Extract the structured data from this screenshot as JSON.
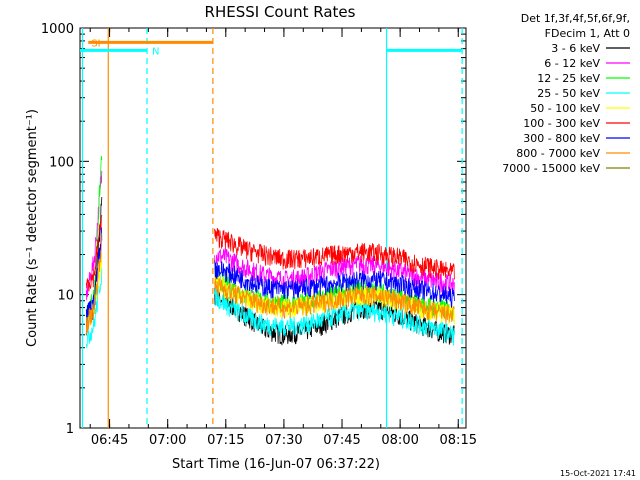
{
  "chart_data": {
    "type": "line",
    "title": "RHESSI Count Rates",
    "xlabel": "Start Time (16-Jun-07 06:37:22)",
    "ylabel": "Count Rate (s⁻¹ detector segment⁻¹)",
    "yscale": "log",
    "ylim": [
      1,
      1000
    ],
    "xlim": [
      "06:37:22",
      "08:17:00"
    ],
    "x_ticks": [
      "06:45",
      "07:00",
      "07:15",
      "07:30",
      "07:45",
      "08:00",
      "08:15"
    ],
    "y_ticks": [
      "1",
      "10",
      "100",
      "1000"
    ],
    "grid": false,
    "legend_position": "right",
    "legend_header": [
      "Det 1f,3f,4f,5f,6f,9f,",
      "FDecim 1, Att 0"
    ],
    "timestamp": "15-Oct-2021 17:41",
    "data_gap": [
      "06:46:30",
      "07:11:40"
    ],
    "series": [
      {
        "name": "3 - 6 keV",
        "color": "#000000",
        "x": [
          "06:39",
          "06:41",
          "06:43",
          "07:12",
          "07:15",
          "07:20",
          "07:25",
          "07:30",
          "07:35",
          "07:40",
          "07:45",
          "07:50",
          "07:55",
          "08:00",
          "08:05",
          "08:10",
          "08:14"
        ],
        "values": [
          6,
          8,
          50,
          10,
          9,
          7,
          5.5,
          5,
          5.3,
          6,
          7,
          8,
          7.8,
          7,
          6,
          5.3,
          5
        ]
      },
      {
        "name": "6 - 12 keV",
        "color": "#ff00ff",
        "x": [
          "06:39",
          "06:41",
          "06:43",
          "07:12",
          "07:15",
          "07:20",
          "07:25",
          "07:30",
          "07:35",
          "07:40",
          "07:45",
          "07:50",
          "07:55",
          "08:00",
          "08:05",
          "08:10",
          "08:14"
        ],
        "values": [
          10,
          18,
          80,
          20,
          19,
          16,
          14,
          13,
          13.5,
          15,
          16.5,
          17,
          16.5,
          15,
          13.5,
          12.5,
          12
        ]
      },
      {
        "name": "12 - 25 keV",
        "color": "#00ff00",
        "x": [
          "06:39",
          "06:41",
          "06:43",
          "07:12",
          "07:15",
          "07:20",
          "07:25",
          "07:30",
          "07:35",
          "07:40",
          "07:45",
          "07:50",
          "07:55",
          "08:00",
          "08:05",
          "08:10",
          "08:14"
        ],
        "values": [
          7,
          10,
          120,
          14,
          12,
          10,
          9,
          8.5,
          8.7,
          9.5,
          10.5,
          11,
          10.5,
          9.5,
          8.5,
          8,
          7.5
        ]
      },
      {
        "name": "25 - 50 keV",
        "color": "#00ffff",
        "x": [
          "06:39",
          "06:41",
          "06:43",
          "07:12",
          "07:15",
          "07:20",
          "07:25",
          "07:30",
          "07:35",
          "07:40",
          "07:45",
          "07:50",
          "07:55",
          "08:00",
          "08:05",
          "08:10",
          "08:14"
        ],
        "values": [
          4.5,
          6,
          15,
          10,
          8.5,
          7,
          6,
          5.8,
          6,
          6.5,
          7.2,
          7.8,
          7.5,
          6.8,
          6,
          5.5,
          5
        ]
      },
      {
        "name": "50 - 100 keV",
        "color": "#ffff00",
        "x": [
          "06:39",
          "06:41",
          "06:43",
          "07:12",
          "07:15",
          "07:20",
          "07:25",
          "07:30",
          "07:35",
          "07:40",
          "07:45",
          "07:50",
          "07:55",
          "08:00",
          "08:05",
          "08:10",
          "08:14"
        ],
        "values": [
          6,
          8,
          20,
          13,
          11,
          9.5,
          8.3,
          8,
          8.2,
          8.8,
          9.5,
          10,
          9.8,
          9,
          8,
          7.5,
          7
        ]
      },
      {
        "name": "100 - 300 keV",
        "color": "#ff0000",
        "x": [
          "06:39",
          "06:41",
          "06:43",
          "07:12",
          "07:15",
          "07:20",
          "07:25",
          "07:30",
          "07:35",
          "07:40",
          "07:45",
          "07:50",
          "07:55",
          "08:00",
          "08:05",
          "08:10",
          "08:14"
        ],
        "values": [
          12,
          14,
          40,
          28,
          26,
          22,
          20,
          18.5,
          18.8,
          19.5,
          20.5,
          21,
          20.5,
          19,
          17,
          15.5,
          14.5
        ]
      },
      {
        "name": "300 - 800 keV",
        "color": "#0000ff",
        "x": [
          "06:39",
          "06:41",
          "06:43",
          "07:12",
          "07:15",
          "07:20",
          "07:25",
          "07:30",
          "07:35",
          "07:40",
          "07:45",
          "07:50",
          "07:55",
          "08:00",
          "08:05",
          "08:10",
          "08:14"
        ],
        "values": [
          7,
          9,
          30,
          16,
          15,
          13,
          11.5,
          11,
          11.2,
          11.8,
          12.5,
          13,
          12.8,
          12,
          11,
          10.2,
          9.5
        ]
      },
      {
        "name": "800 - 7000 keV",
        "color": "#ff8c00",
        "x": [
          "06:39",
          "06:41",
          "06:43",
          "07:12",
          "07:15",
          "07:20",
          "07:25",
          "07:30",
          "07:35",
          "07:40",
          "07:45",
          "07:50",
          "07:55",
          "08:00",
          "08:05",
          "08:10",
          "08:14"
        ],
        "values": [
          6,
          8,
          25,
          12,
          11,
          9.5,
          8.5,
          8,
          8.2,
          8.8,
          9.5,
          10,
          9.8,
          9,
          8,
          7.3,
          7
        ]
      },
      {
        "name": "7000 - 15000 keV",
        "color": "#808000",
        "x": [],
        "values": []
      }
    ],
    "annotations": [
      {
        "type": "bar",
        "label": "SI",
        "color": "#ff8c00",
        "y": 780,
        "x_start": "06:39:30",
        "x_end": "07:11:40"
      },
      {
        "type": "bar",
        "label": "N",
        "color": "#00ffff",
        "y": 680,
        "x_start": "06:37:22",
        "x_end": "06:54:40"
      },
      {
        "type": "bar",
        "label": "",
        "color": "#00ffff",
        "y": 680,
        "x_start": "07:56:30",
        "x_end": "08:16:00"
      }
    ],
    "vertical_lines": [
      {
        "x": "06:38:00",
        "color": "#00ffff",
        "style": "solid"
      },
      {
        "x": "06:44:40",
        "color": "#ff8c00",
        "style": "solid"
      },
      {
        "x": "06:54:40",
        "color": "#00ffff",
        "style": "dashed"
      },
      {
        "x": "07:11:40",
        "color": "#ff8c00",
        "style": "dashed"
      },
      {
        "x": "07:56:30",
        "color": "#00ffff",
        "style": "solid"
      },
      {
        "x": "08:16:00",
        "color": "#00ffff",
        "style": "dashed"
      }
    ]
  }
}
